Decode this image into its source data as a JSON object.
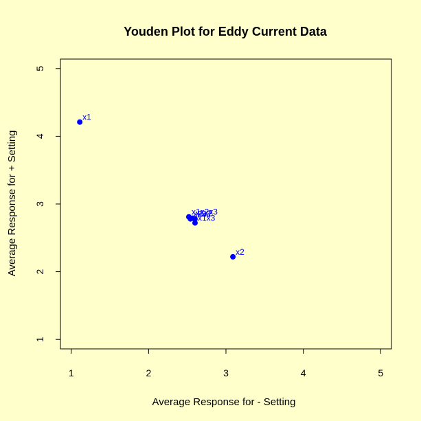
{
  "chart_data": {
    "type": "scatter",
    "title": "Youden Plot for Eddy Current Data",
    "xlabel": "Average Response for - Setting",
    "ylabel": "Average Response for + Setting",
    "xlim": [
      0.86,
      5.14
    ],
    "ylim": [
      0.86,
      5.14
    ],
    "xticks": [
      1,
      2,
      3,
      4,
      5
    ],
    "yticks": [
      1,
      2,
      3,
      4,
      5
    ],
    "grid": false,
    "legend": "none",
    "background_color": "#ffffcc",
    "point_color": "#0000ff",
    "series": [
      {
        "points": [
          {
            "x": 1.11,
            "y": 4.21,
            "label": "x1"
          },
          {
            "x": 3.09,
            "y": 2.22,
            "label": "x2"
          },
          {
            "x": 2.6,
            "y": 2.78,
            "label": "x3"
          },
          {
            "x": 2.57,
            "y": 2.79,
            "label": "x1x2"
          },
          {
            "x": 2.6,
            "y": 2.72,
            "label": "x1x3"
          },
          {
            "x": 2.54,
            "y": 2.78,
            "label": "x2x3"
          },
          {
            "x": 2.52,
            "y": 2.81,
            "label": "x1x2x3"
          }
        ]
      }
    ]
  }
}
